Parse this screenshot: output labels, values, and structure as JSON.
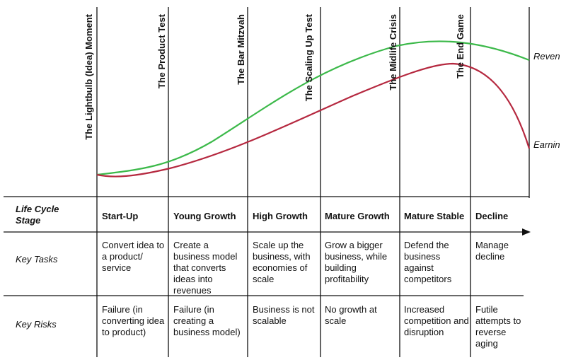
{
  "milestones": [
    "The Lightbulb (Idea) Moment",
    "The Product Test",
    "The Bar Mitzvah",
    "The Scaling Up Test",
    "The Midlife Crisis",
    "The End Game"
  ],
  "curve_labels": [
    "Reven",
    "Earnin"
  ],
  "row_headers": [
    "Life Cycle Stage",
    "Key Tasks",
    "Key Risks"
  ],
  "stages": [
    {
      "name": "Start-Up",
      "task": "Convert idea to a product/ service",
      "risk": "Failure (in converting idea to product)"
    },
    {
      "name": "Young Growth",
      "task": "Create a business model that converts ideas into revenues",
      "risk": "Failure (in creating a business model)"
    },
    {
      "name": "High Growth",
      "task": "Scale up the business, with economies of scale",
      "risk": "Business is not scalable"
    },
    {
      "name": "Mature Growth",
      "task": "Grow a bigger business, while building profitability",
      "risk": "No growth at scale"
    },
    {
      "name": "Mature Stable",
      "task": "Defend the business against competitors",
      "risk": "Increased competition and disruption"
    },
    {
      "name": "Decline",
      "task": "Manage decline",
      "risk": "Futile attempts to reverse aging"
    }
  ]
}
